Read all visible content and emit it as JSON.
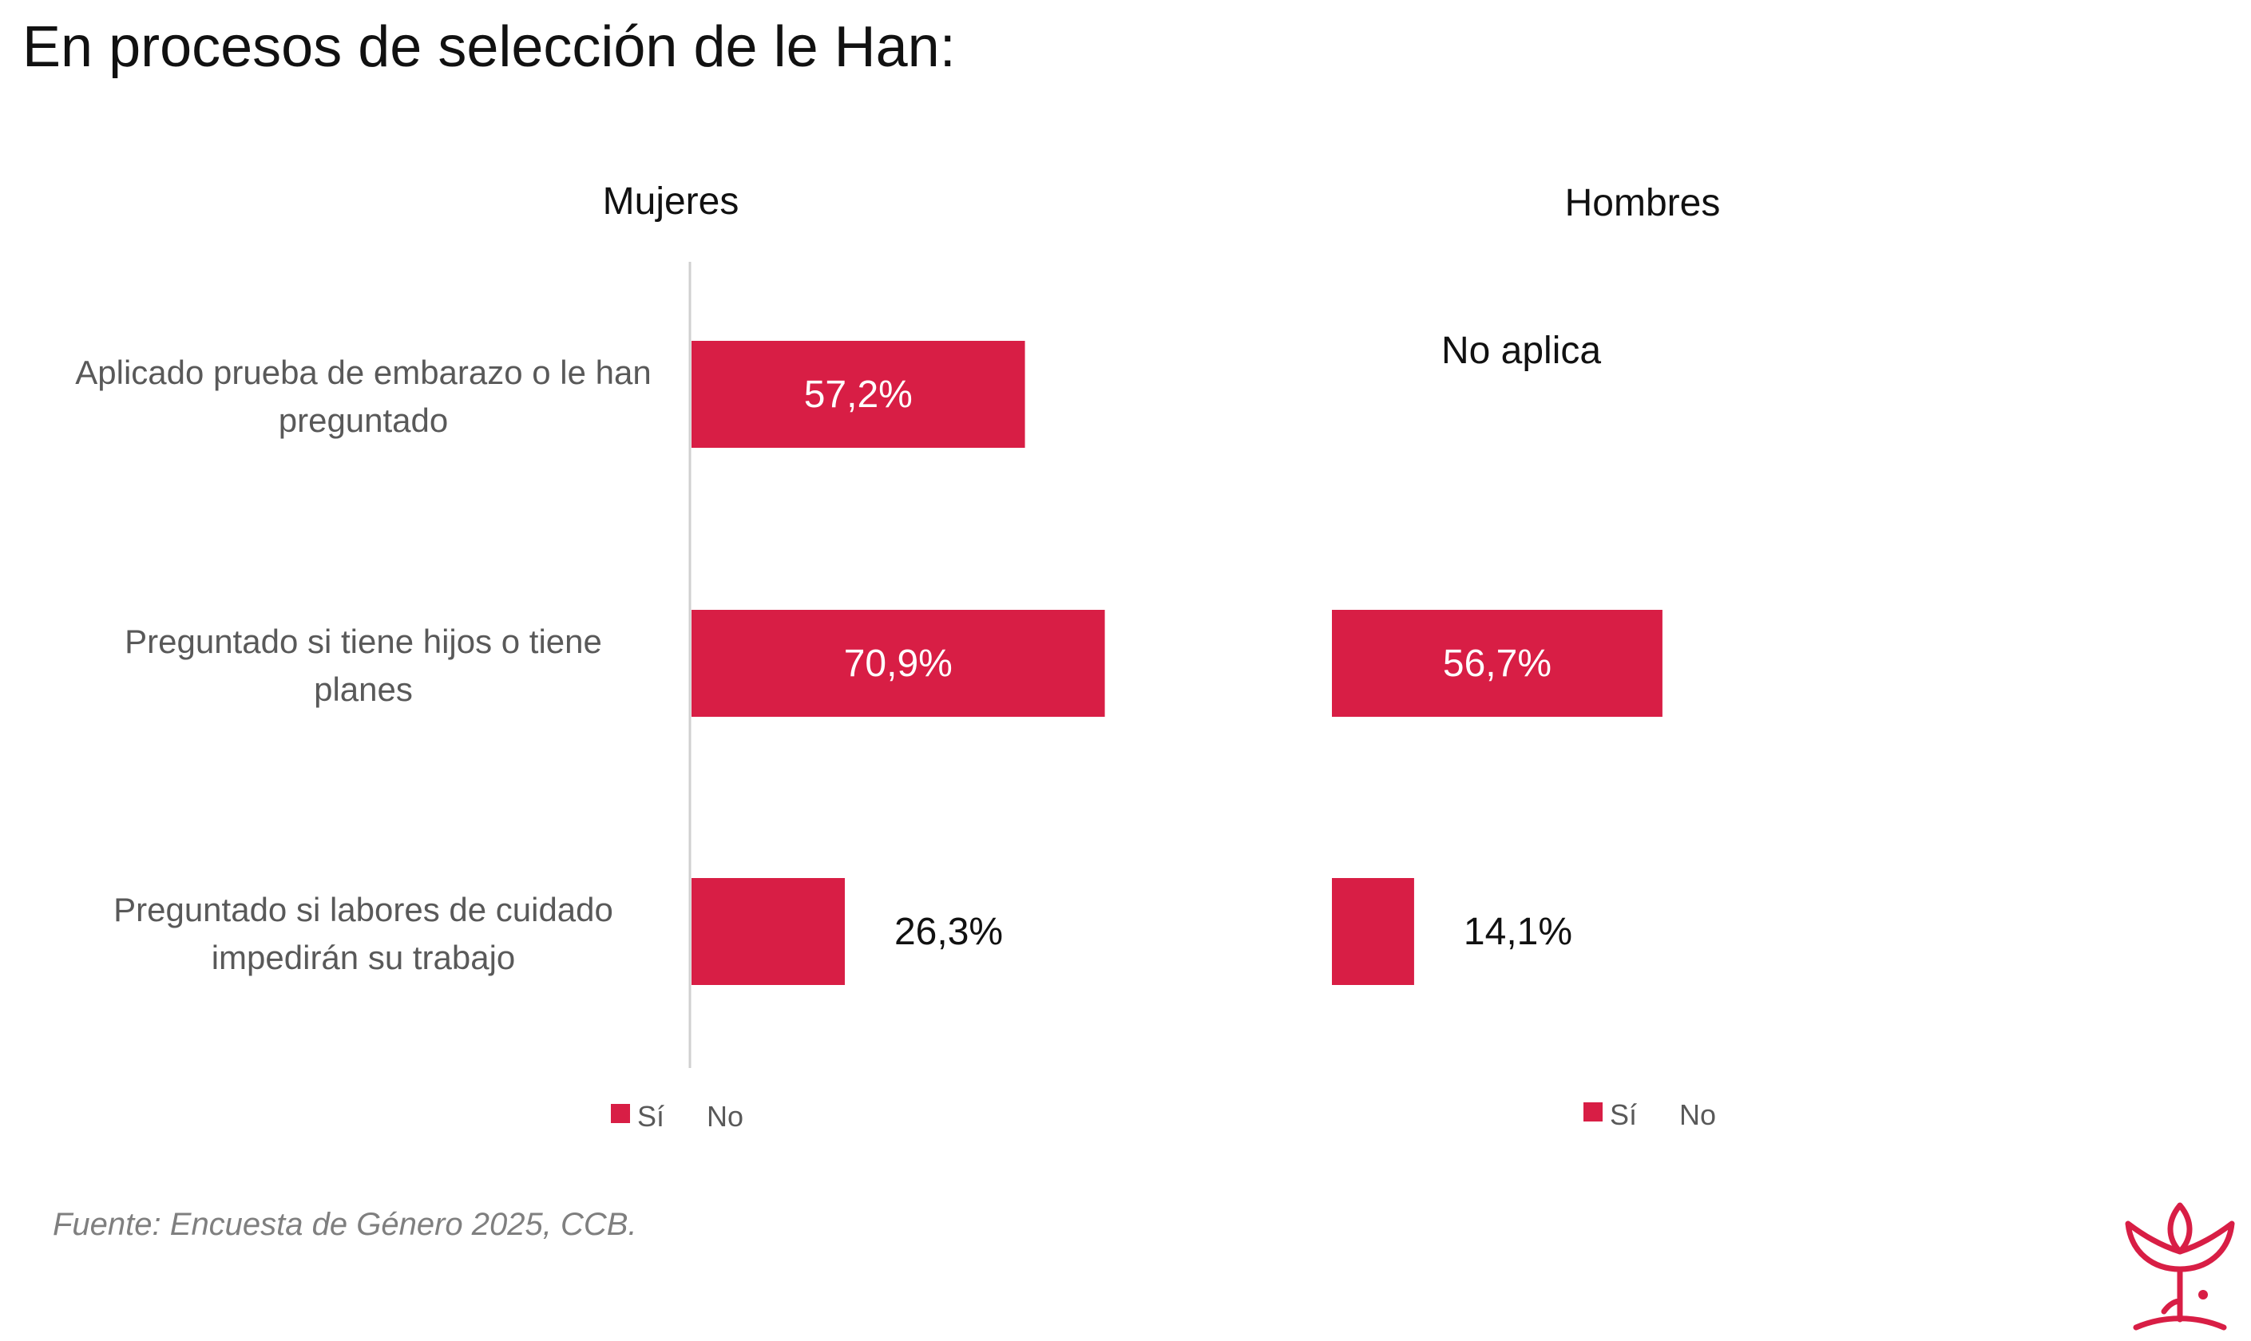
{
  "page": {
    "title": "En procesos de selección de le Han:",
    "source": "Fuente: Encuesta de Género 2025, CCB."
  },
  "colors": {
    "bar": "#D81E45",
    "label_outside": "#111111",
    "label_inside": "#ffffff",
    "category": "#595959",
    "axis": "#d0d0d0"
  },
  "chart_data": [
    {
      "type": "bar",
      "orientation": "horizontal",
      "title": "Mujeres",
      "categories": [
        "Aplicado prueba de embarazo o le han preguntado",
        "Preguntado si tiene hijos o tiene planes",
        "Preguntado si labores de cuidado impedirán su trabajo"
      ],
      "category_lines": [
        [
          "Aplicado prueba de embarazo o le han",
          "preguntado"
        ],
        [
          "Preguntado si tiene hijos o tiene",
          "planes"
        ],
        [
          "Preguntado si labores de cuidado",
          "impedirán su trabajo"
        ]
      ],
      "series": [
        {
          "name": "Sí",
          "values": [
            57.2,
            70.9,
            26.3
          ],
          "labels": [
            "57,2%",
            "70,9%",
            "26,3%"
          ]
        },
        {
          "name": "No",
          "values": [
            null,
            null,
            null
          ]
        }
      ],
      "legend": [
        "Sí",
        "No"
      ],
      "legend_position": "bottom"
    },
    {
      "type": "bar",
      "orientation": "horizontal",
      "title": "Hombres",
      "categories": [
        "Aplicado prueba de embarazo o le han preguntado",
        "Preguntado si tiene hijos o tiene planes",
        "Preguntado si labores de cuidado impedirán su trabajo"
      ],
      "series": [
        {
          "name": "Sí",
          "values": [
            null,
            56.7,
            14.1
          ],
          "labels": [
            "",
            "56,7%",
            "14,1%"
          ]
        },
        {
          "name": "No",
          "values": [
            null,
            null,
            null
          ]
        }
      ],
      "annotations": [
        "No aplica"
      ],
      "legend": [
        "Sí",
        "No"
      ],
      "legend_position": "bottom"
    }
  ]
}
